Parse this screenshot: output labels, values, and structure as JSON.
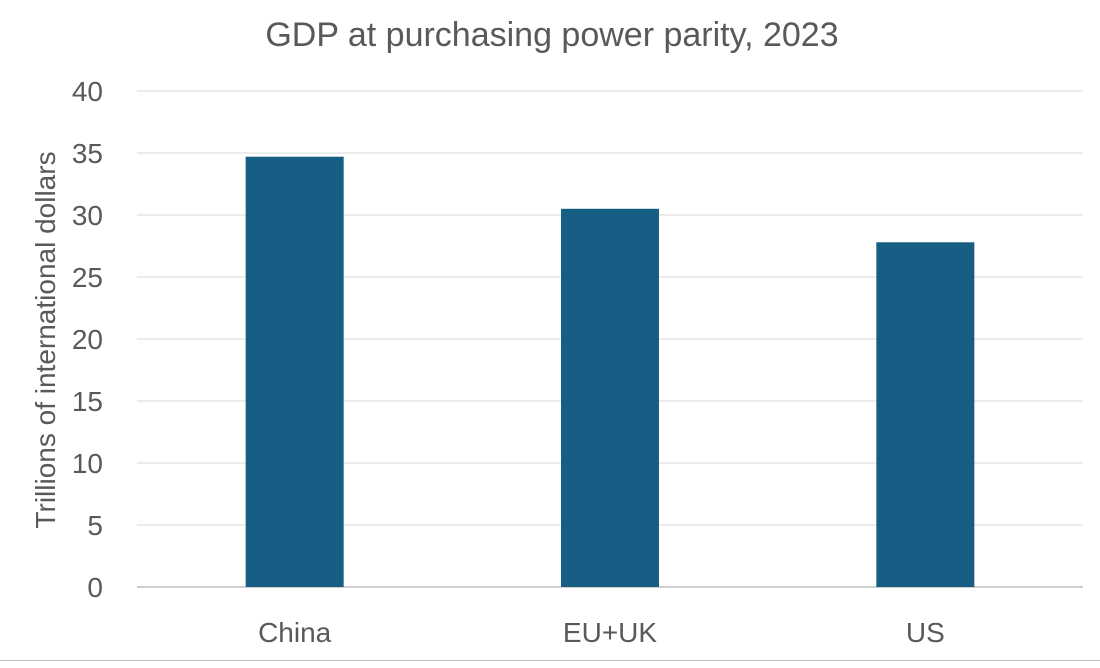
{
  "chart_data": {
    "type": "bar",
    "title": "GDP at purchasing power parity, 2023",
    "xlabel": "",
    "ylabel": "Trillions of international dollars",
    "categories": [
      "China",
      "EU+UK",
      "US"
    ],
    "values": [
      34.7,
      30.5,
      27.8
    ],
    "ylim": [
      0,
      40
    ],
    "yticks": [
      0,
      5,
      10,
      15,
      20,
      25,
      30,
      35,
      40
    ],
    "grid": true,
    "legend": "none",
    "colors": {
      "bar": "#175E84",
      "grid": "#d9d9d9",
      "text": "#595959"
    }
  }
}
